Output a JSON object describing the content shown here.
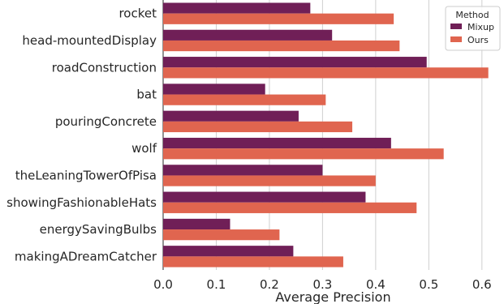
{
  "chart_data": {
    "type": "bar",
    "orientation": "horizontal",
    "categories": [
      "rocket",
      "head-mountedDisplay",
      "roadConstruction",
      "bat",
      "pouringConcrete",
      "wolf",
      "theLeaningTowerOfPisa",
      "showingFashionableHats",
      "energySavingBulbs",
      "makingADreamCatcher"
    ],
    "series": [
      {
        "name": "Mixup",
        "color": "#701f57",
        "values": [
          0.277,
          0.318,
          0.496,
          0.192,
          0.255,
          0.429,
          0.3,
          0.381,
          0.126,
          0.245
        ]
      },
      {
        "name": "Ours",
        "color": "#e0654f",
        "values": [
          0.434,
          0.445,
          0.612,
          0.306,
          0.356,
          0.528,
          0.4,
          0.477,
          0.219,
          0.339
        ]
      }
    ],
    "xlabel": "Average Precision",
    "ylabel": "",
    "xlim": [
      0,
      0.64
    ],
    "xticks": [
      "0.0",
      "0.1",
      "0.2",
      "0.3",
      "0.4",
      "0.5",
      "0.6"
    ],
    "grid": "vertical",
    "legend": {
      "title": "Method",
      "placement": "top-right"
    }
  }
}
